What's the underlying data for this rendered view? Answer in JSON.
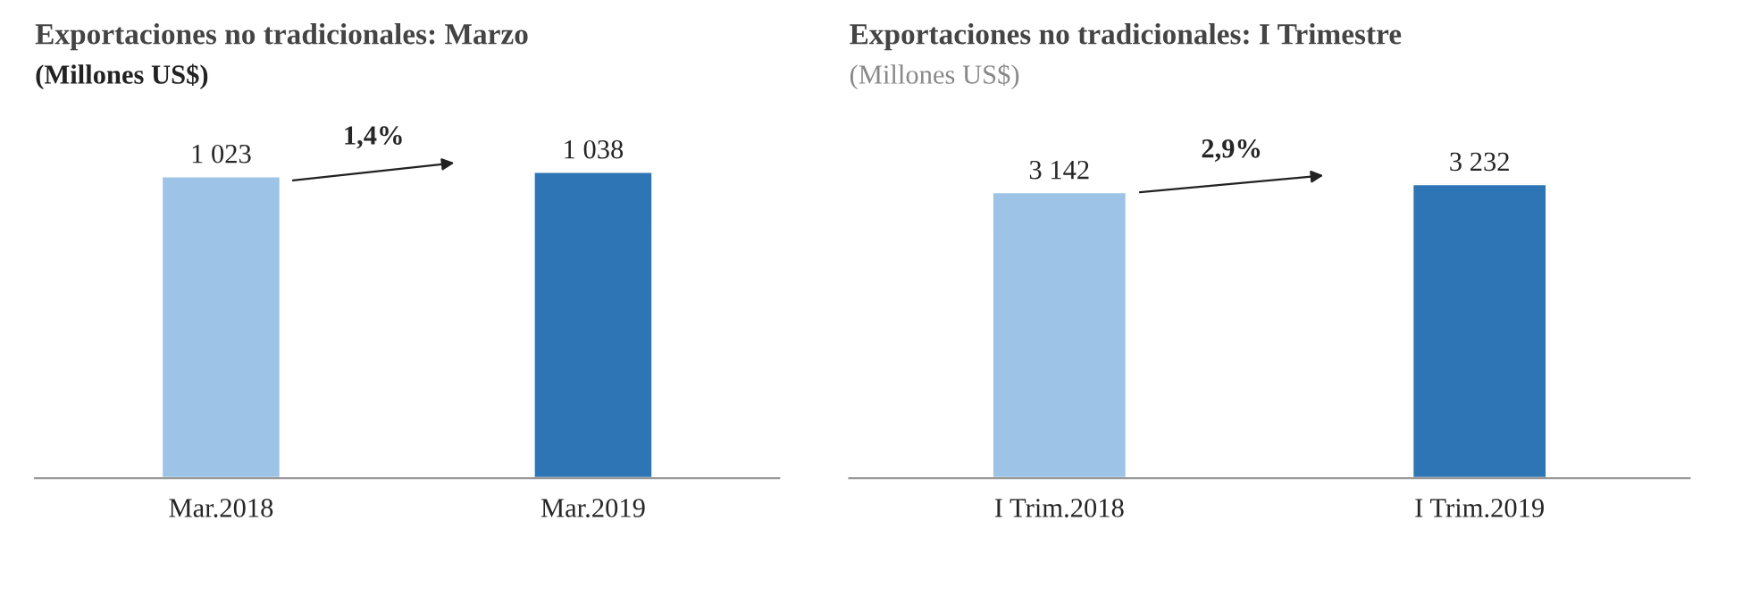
{
  "chart_data": [
    {
      "type": "bar",
      "title": "Exportaciones no tradicionales: Marzo",
      "subtitle": "(Millones US$)",
      "categories": [
        "Mar.2018",
        "Mar.2019"
      ],
      "values": [
        1023,
        1038
      ],
      "colors": [
        "#9dc3e6",
        "#2e75b6"
      ],
      "value_labels": [
        "1 023",
        "1 038"
      ],
      "annotations": [
        "1,4%"
      ],
      "tick_labels": "x",
      "grid": false,
      "legend": false
    },
    {
      "type": "bar",
      "title": "Exportaciones no tradicionales: I Trimestre",
      "subtitle": "(Millones US$)",
      "categories": [
        "I Trim.2018",
        "I Trim.2019"
      ],
      "values": [
        3142,
        3232
      ],
      "colors": [
        "#9dc3e6",
        "#2e75b6"
      ],
      "value_labels": [
        "3 142",
        "3 232"
      ],
      "annotations": [
        "2,9%"
      ],
      "tick_labels": "x",
      "grid": false,
      "legend": false
    }
  ]
}
